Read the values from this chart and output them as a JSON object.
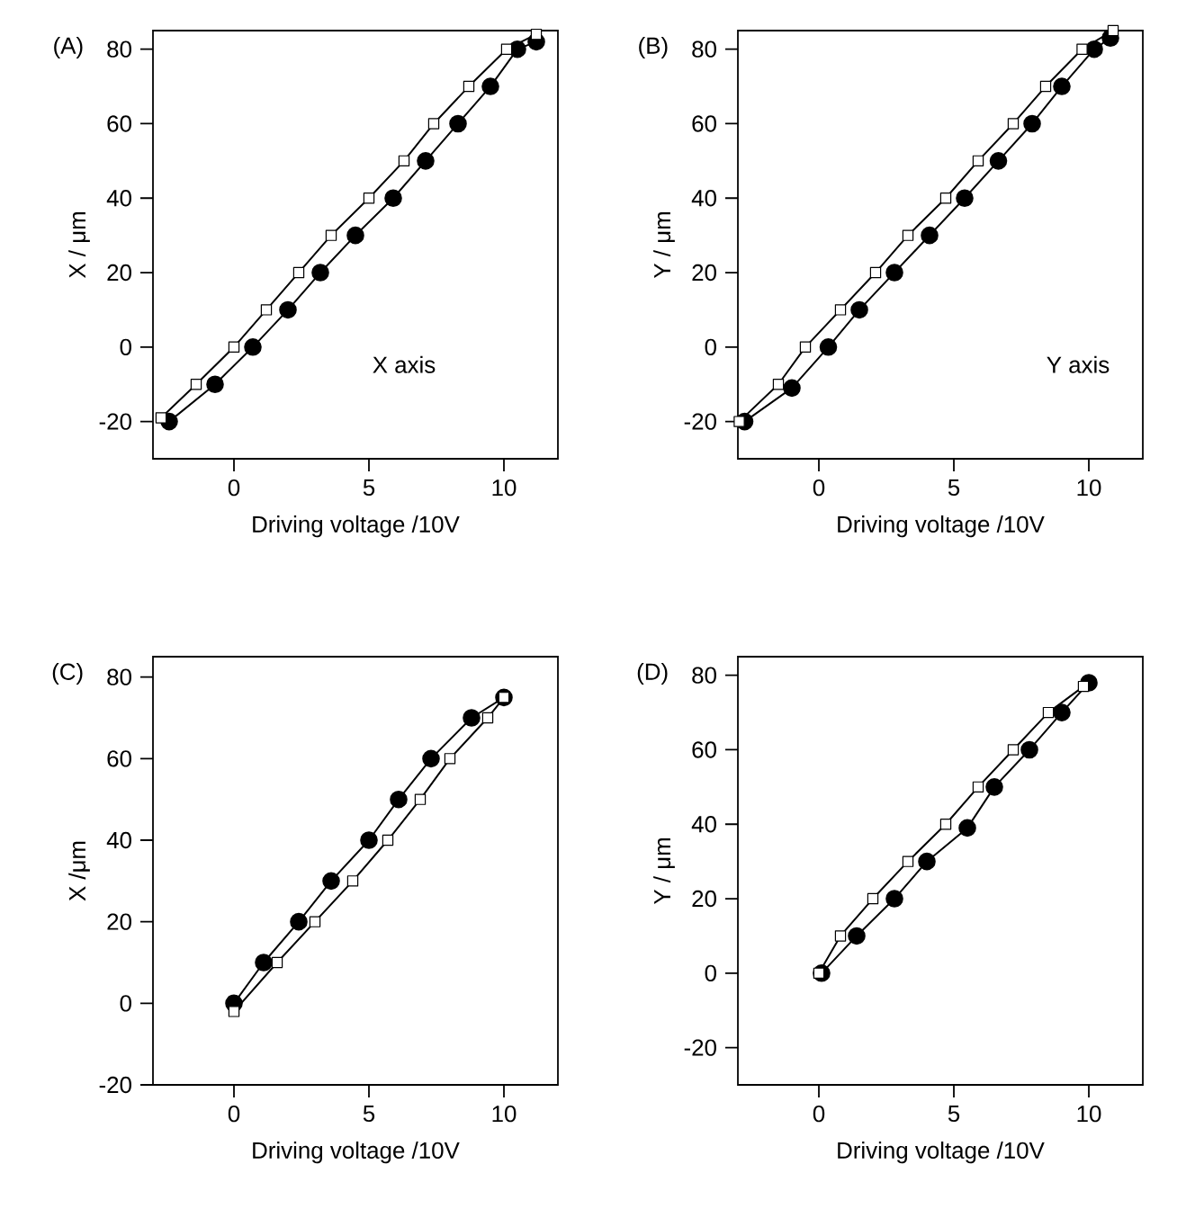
{
  "chart_data": [
    {
      "type": "line",
      "title": "(A)",
      "xlabel": "Driving voltage /10V",
      "ylabel": "X / μm",
      "annotations": [
        "X axis"
      ],
      "xlim": [
        -3,
        12
      ],
      "ylim": [
        -30,
        85
      ],
      "xticks": [
        0,
        5,
        10
      ],
      "yticks": [
        -20,
        0,
        20,
        40,
        60,
        80
      ],
      "grid": false,
      "line_style": "solid",
      "series": [
        {
          "color": "#000000",
          "marker": "square",
          "x": [
            -2.7,
            -1.4,
            0,
            1.2,
            2.4,
            3.6,
            5,
            6.3,
            7.4,
            8.7,
            10.1,
            11.2
          ],
          "values": [
            -19,
            -10,
            0,
            10,
            20,
            30,
            40,
            50,
            60,
            70,
            80,
            84
          ]
        },
        {
          "color": "#000000",
          "marker": "circle",
          "x": [
            -2.4,
            -0.7,
            0.7,
            2,
            3.2,
            4.5,
            5.9,
            7.1,
            8.3,
            9.5,
            10.5,
            11.2
          ],
          "values": [
            -20,
            -10,
            0,
            10,
            20,
            30,
            40,
            50,
            60,
            70,
            80,
            82
          ]
        }
      ]
    },
    {
      "type": "line",
      "title": "(B)",
      "xlabel": "Driving voltage /10V",
      "ylabel": "Y / μm",
      "annotations": [
        "Y axis"
      ],
      "xlim": [
        -3,
        12
      ],
      "ylim": [
        -30,
        85
      ],
      "xticks": [
        0,
        5,
        10
      ],
      "yticks": [
        -20,
        0,
        20,
        40,
        60,
        80
      ],
      "line_style": "solid",
      "series": [
        {
          "color": "#000000",
          "marker": "square",
          "x": [
            -2.95,
            -1.5,
            -0.5,
            0.8,
            2.1,
            3.3,
            4.7,
            5.9,
            7.2,
            8.4,
            9.75,
            10.9
          ],
          "values": [
            -20,
            -10,
            0,
            10,
            20,
            30,
            40,
            50,
            60,
            70,
            80,
            85
          ]
        },
        {
          "color": "#000000",
          "marker": "circle",
          "x": [
            -2.75,
            -1,
            0.35,
            1.5,
            2.8,
            4.1,
            5.4,
            6.65,
            7.9,
            9,
            10.2,
            10.8
          ],
          "values": [
            -20,
            -11,
            0,
            10,
            20,
            30,
            40,
            50,
            60,
            70,
            80,
            83
          ]
        }
      ]
    },
    {
      "type": "line",
      "title": "(C)",
      "xlabel": "Driving voltage /10V",
      "ylabel": "X /μm",
      "xlim": [
        -3,
        12
      ],
      "ylim": [
        -20,
        85
      ],
      "xticks": [
        0,
        5,
        10
      ],
      "yticks": [
        -20,
        0,
        20,
        40,
        60,
        80
      ],
      "line_style": "solid",
      "series": [
        {
          "color": "#000000",
          "marker": "square",
          "x": [
            0,
            1.6,
            3,
            4.4,
            5.7,
            6.9,
            8,
            9.4,
            10
          ],
          "values": [
            -2,
            10,
            20,
            30,
            40,
            50,
            60,
            70,
            75
          ]
        },
        {
          "color": "#000000",
          "marker": "circle",
          "x": [
            0,
            1.1,
            2.4,
            3.6,
            5,
            6.1,
            7.3,
            8.8,
            10
          ],
          "values": [
            0,
            10,
            20,
            30,
            40,
            50,
            60,
            70,
            75
          ]
        }
      ]
    },
    {
      "type": "line",
      "title": "(D)",
      "xlabel": "Driving voltage /10V",
      "ylabel": "Y / μm",
      "xlim": [
        -3,
        12
      ],
      "ylim": [
        -30,
        85
      ],
      "xticks": [
        0,
        5,
        10
      ],
      "yticks": [
        -20,
        0,
        20,
        40,
        60,
        80
      ],
      "line_style": "solid",
      "series": [
        {
          "color": "#000000",
          "marker": "square",
          "x": [
            0,
            0.8,
            2,
            3.3,
            4.7,
            5.9,
            7.2,
            8.5,
            9.8
          ],
          "values": [
            0,
            10,
            20,
            30,
            40,
            50,
            60,
            70,
            77
          ]
        },
        {
          "color": "#000000",
          "marker": "circle",
          "x": [
            0.1,
            1.4,
            2.8,
            4,
            5.5,
            6.5,
            7.8,
            9,
            10
          ],
          "values": [
            0,
            10,
            20,
            30,
            39,
            50,
            60,
            70,
            78
          ]
        }
      ]
    }
  ]
}
